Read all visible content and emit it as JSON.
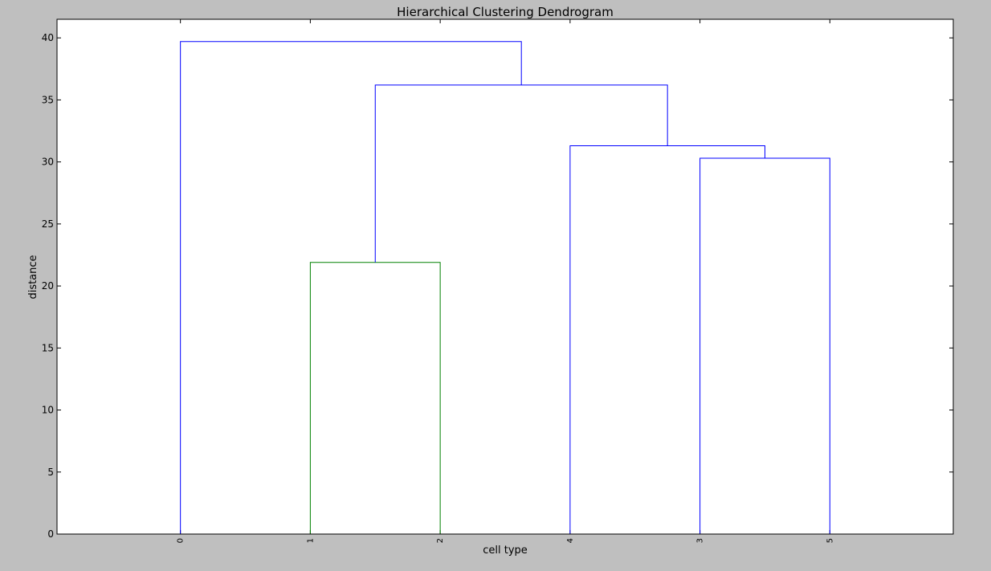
{
  "chart_data": {
    "type": "dendrogram",
    "title": "Hierarchical Clustering Dendrogram",
    "xlabel": "cell type",
    "ylabel": "distance",
    "leaves": [
      "0",
      "1",
      "2",
      "4",
      "3",
      "5"
    ],
    "yticks": [
      0,
      5,
      10,
      15,
      20,
      25,
      30,
      35,
      40
    ],
    "ylim": [
      0,
      41.5
    ],
    "grid": false,
    "colors": {
      "above_threshold": "#0000ff",
      "cluster": "#008000",
      "background": "#bfbfbf",
      "plot_area": "#ffffff"
    },
    "links": [
      {
        "left": "1",
        "right": "2",
        "height": 21.9,
        "color": "cluster"
      },
      {
        "left": "3",
        "right": "5",
        "height": 30.3,
        "color": "above_threshold"
      },
      {
        "left": "4",
        "right": "(3,5)",
        "height": 31.3,
        "color": "above_threshold"
      },
      {
        "left": "(1,2)",
        "right": "(4,3,5)",
        "height": 36.2,
        "color": "above_threshold"
      },
      {
        "left": "0",
        "right": "(1,2,4,3,5)",
        "height": 39.7,
        "color": "above_threshold"
      }
    ]
  }
}
